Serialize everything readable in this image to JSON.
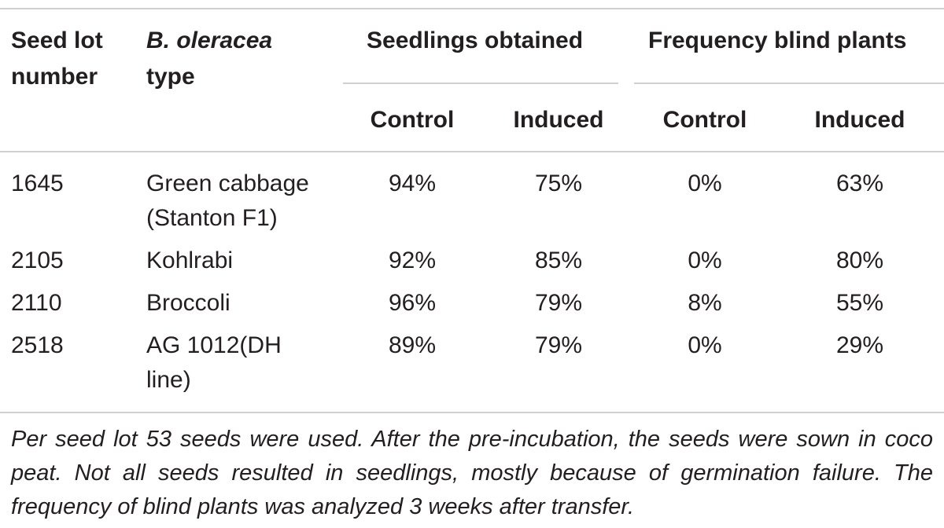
{
  "table": {
    "headers": {
      "seed_lot_line1": "Seed lot",
      "seed_lot_line2": "number",
      "type_line1": "B. oleracea",
      "type_line2": "type",
      "group_seedlings": "Seedlings obtained",
      "group_blind": "Frequency blind plants",
      "sub_control_1": "Control",
      "sub_induced_1": "Induced",
      "sub_control_2": "Control",
      "sub_induced_2": "Induced"
    },
    "rows": [
      {
        "lot": "1645",
        "type_line1": "Green cabbage",
        "type_line2": "(Stanton F1)",
        "seedlings_control": "94%",
        "seedlings_induced": "75%",
        "blind_control": "0%",
        "blind_induced": "63%"
      },
      {
        "lot": "2105",
        "type_line1": "Kohlrabi",
        "type_line2": "",
        "seedlings_control": "92%",
        "seedlings_induced": "85%",
        "blind_control": "0%",
        "blind_induced": "80%"
      },
      {
        "lot": "2110",
        "type_line1": "Broccoli",
        "type_line2": "",
        "seedlings_control": "96%",
        "seedlings_induced": "79%",
        "blind_control": "8%",
        "blind_induced": "55%"
      },
      {
        "lot": "2518",
        "type_line1": "AG 1012(DH",
        "type_line2": "line)",
        "seedlings_control": "89%",
        "seedlings_induced": "79%",
        "blind_control": "0%",
        "blind_induced": "29%"
      }
    ],
    "footnote": "Per seed lot 53 seeds were used. After the pre-incubation, the seeds were sown in coco peat. Not all seeds resulted in seedlings, mostly because of germination failure. The frequency of blind plants was analyzed 3 weeks after transfer."
  }
}
